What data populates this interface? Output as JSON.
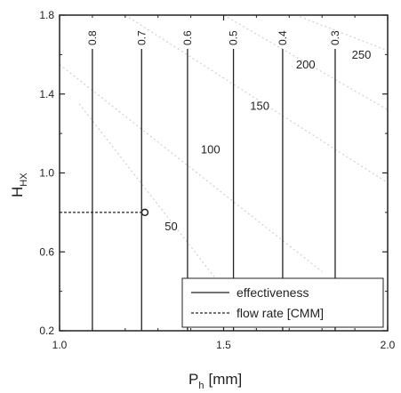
{
  "chart_data": {
    "type": "line",
    "title": "",
    "xlabel_main": "P",
    "xlabel_sub": "h",
    "xlabel_unit": "[mm]",
    "ylabel_main": "H",
    "ylabel_sub": "HX",
    "xlim": [
      1.0,
      2.0
    ],
    "ylim": [
      0.2,
      1.8
    ],
    "x_ticks": [
      1.0,
      1.5,
      2.0
    ],
    "x_tick_labels": [
      "1.0",
      "1.5",
      "2.0"
    ],
    "y_ticks": [
      0.2,
      0.6,
      1.0,
      1.4,
      1.8
    ],
    "y_tick_labels": [
      "0.2",
      "0.6",
      "1.0",
      "1.4",
      "1.8"
    ],
    "grid": false,
    "legend_position": "bottom-right",
    "legend": [
      {
        "label": "effectiveness",
        "style": "solid"
      },
      {
        "label": "flow rate [CMM]",
        "style": "dashed"
      }
    ],
    "effectiveness_contours": [
      {
        "label": "0.8",
        "x": 1.1
      },
      {
        "label": "0.7",
        "x": 1.25
      },
      {
        "label": "0.6",
        "x": 1.39
      },
      {
        "label": "0.5",
        "x": 1.53
      },
      {
        "label": "0.4",
        "x": 1.68
      },
      {
        "label": "0.3",
        "x": 1.84
      }
    ],
    "flow_rate_labels": [
      {
        "label": "50",
        "x": 1.34,
        "y": 0.71
      },
      {
        "label": "100",
        "x": 1.46,
        "y": 1.1
      },
      {
        "label": "150",
        "x": 1.61,
        "y": 1.32
      },
      {
        "label": "200",
        "x": 1.75,
        "y": 1.53
      },
      {
        "label": "250",
        "x": 1.92,
        "y": 1.58
      }
    ],
    "operating_point": {
      "x": 1.26,
      "y": 0.8
    },
    "colors": {
      "lines": "#222222",
      "faint_contours": "#cfcfcf"
    }
  }
}
